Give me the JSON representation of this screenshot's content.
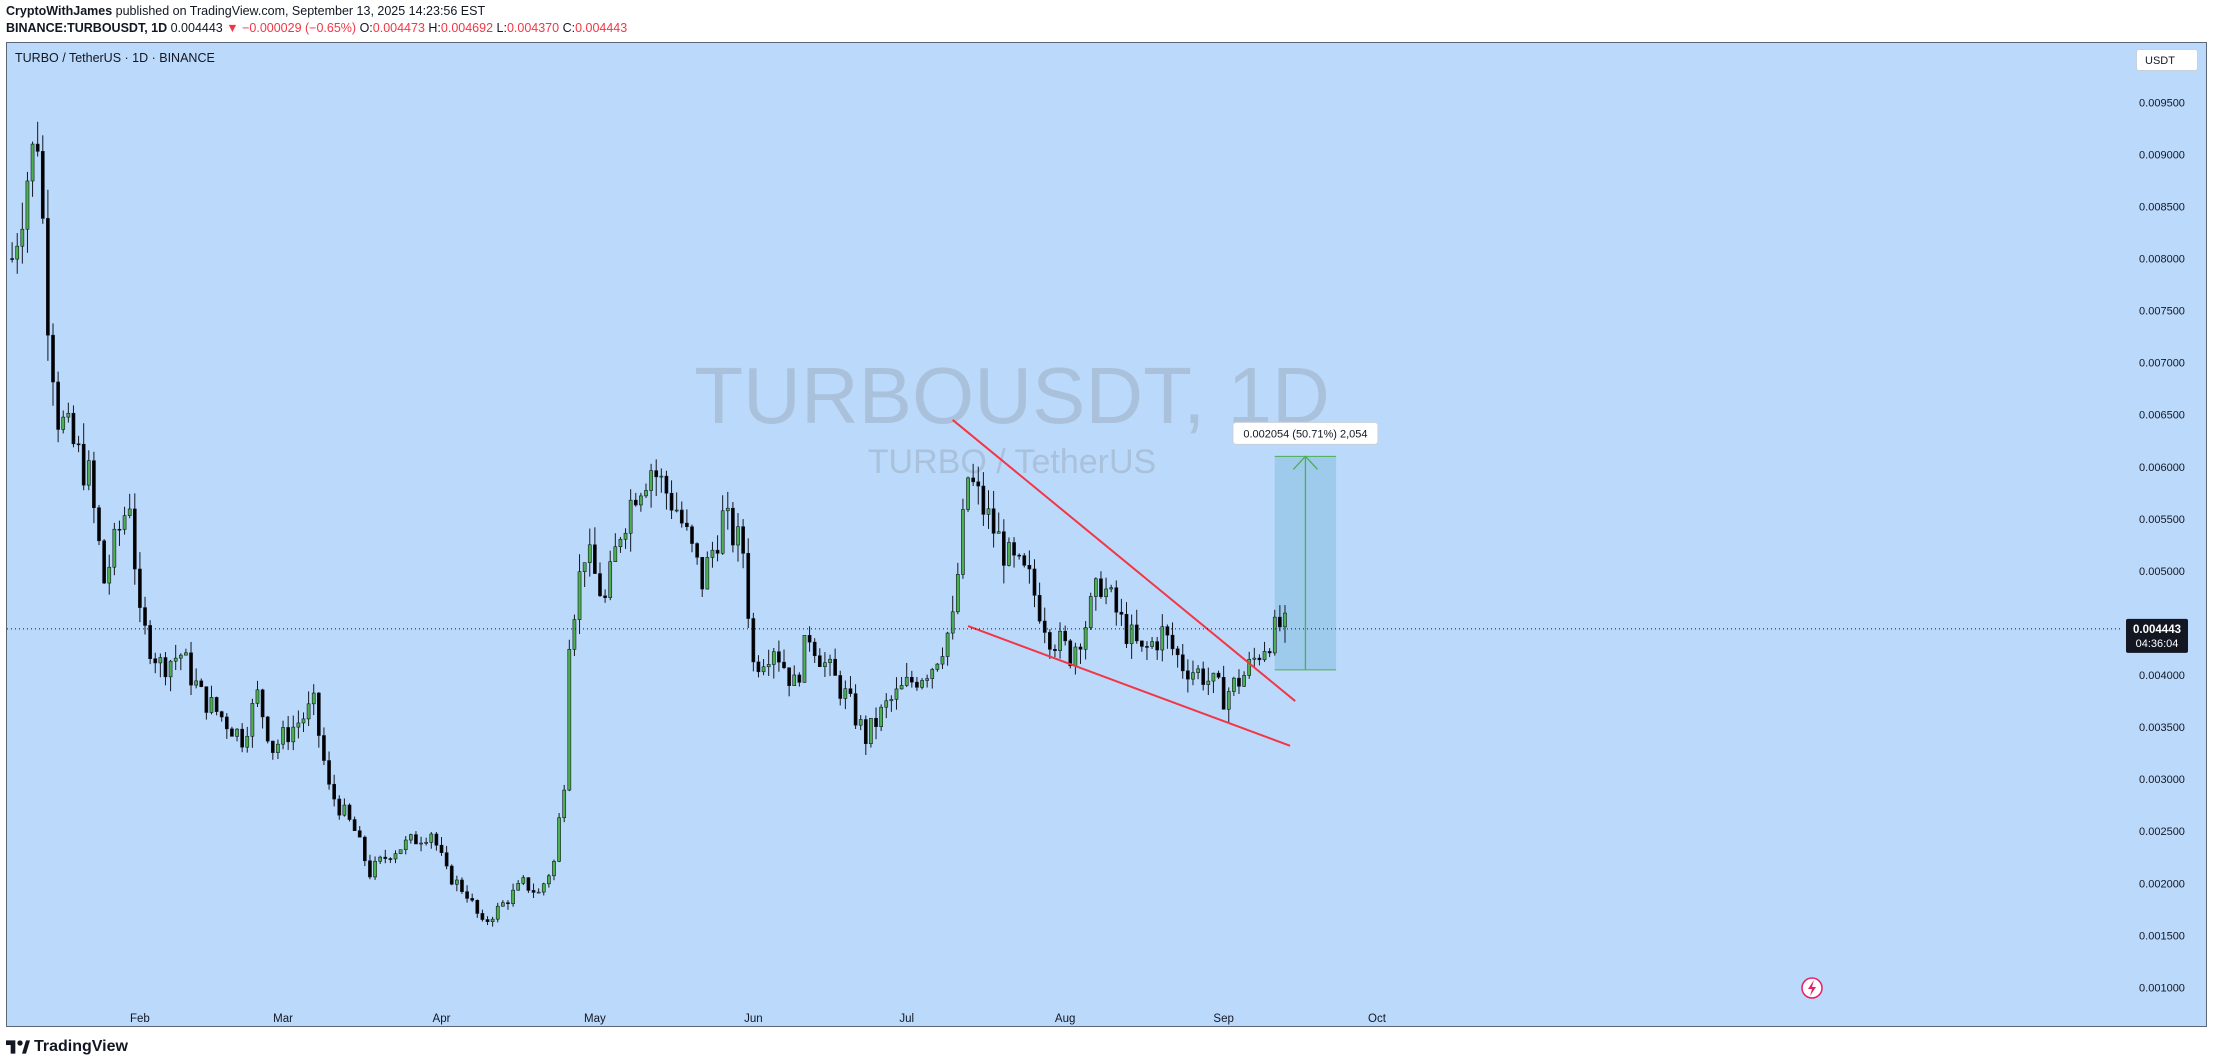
{
  "header": {
    "author": "CryptoWithJames",
    "published_text": "published on TradingView.com, September 13, 2025 14:23:56 EST",
    "symbol_line": "BINANCE:TURBOUSDT, 1D",
    "last": "0.004443",
    "change": "−0.000029 (−0.65%)",
    "o_label": "O:",
    "o": "0.004473",
    "h_label": "H:",
    "h": "0.004692",
    "l_label": "L:",
    "l": "0.004370",
    "c_label": "C:",
    "c": "0.004443"
  },
  "chart_title": "TURBO / TetherUS · 1D · BINANCE",
  "currency_button": "USDT",
  "watermark": {
    "line1": "TURBOUSDT, 1D",
    "line2": "TURBO / TetherUS"
  },
  "price_label": {
    "value": "0.004443",
    "countdown": "04:36:04"
  },
  "measure_label": "0.002054 (50.71%) 2,054",
  "brand": "TradingView",
  "colors": {
    "background": "#bbd9fb",
    "up": "#4caf50",
    "down": "#000000",
    "trendline": "#f23645",
    "target_box": "#99c8e8",
    "arrow": "#4caf50"
  },
  "chart_data": {
    "type": "candlestick",
    "title": "TURBO / TetherUS · 1D · BINANCE",
    "x_ticks": [
      "Feb",
      "Mar",
      "Apr",
      "May",
      "Jun",
      "Jul",
      "Aug",
      "Sep",
      "Oct"
    ],
    "y_ticks": [
      "0.009500",
      "0.009000",
      "0.008500",
      "0.008000",
      "0.007500",
      "0.007000",
      "0.006500",
      "0.006000",
      "0.005500",
      "0.005000",
      "0.004500",
      "0.004000",
      "0.003500",
      "0.003000",
      "0.002500",
      "0.002000",
      "0.001500",
      "0.001000"
    ],
    "y_range": [
      0.00061,
      0.01007
    ],
    "close_path": [
      [
        "2025-01-07",
        0.008
      ],
      [
        "2025-01-10",
        0.0088
      ],
      [
        "2025-01-12",
        0.0092
      ],
      [
        "2025-01-14",
        0.0075
      ],
      [
        "2025-01-16",
        0.0065
      ],
      [
        "2025-01-19",
        0.0062
      ],
      [
        "2025-01-22",
        0.0059
      ],
      [
        "2025-01-25",
        0.0049
      ],
      [
        "2025-01-28",
        0.0054
      ],
      [
        "2025-01-30",
        0.0057
      ],
      [
        "2025-02-01",
        0.0045
      ],
      [
        "2025-02-05",
        0.0041
      ],
      [
        "2025-02-09",
        0.0042
      ],
      [
        "2025-02-13",
        0.0038
      ],
      [
        "2025-02-17",
        0.0036
      ],
      [
        "2025-02-21",
        0.0034
      ],
      [
        "2025-02-24",
        0.0038
      ],
      [
        "2025-02-27",
        0.0033
      ],
      [
        "2025-03-03",
        0.0035
      ],
      [
        "2025-03-07",
        0.0037
      ],
      [
        "2025-03-10",
        0.0029
      ],
      [
        "2025-03-15",
        0.0025
      ],
      [
        "2025-03-18",
        0.0021
      ],
      [
        "2025-03-22",
        0.0023
      ],
      [
        "2025-03-26",
        0.0024
      ],
      [
        "2025-03-30",
        0.0025
      ],
      [
        "2025-04-02",
        0.0021
      ],
      [
        "2025-04-06",
        0.0019
      ],
      [
        "2025-04-09",
        0.0016
      ],
      [
        "2025-04-13",
        0.0018
      ],
      [
        "2025-04-17",
        0.002
      ],
      [
        "2025-04-20",
        0.0019
      ],
      [
        "2025-04-23",
        0.0022
      ],
      [
        "2025-04-25",
        0.003
      ],
      [
        "2025-04-26",
        0.0044
      ],
      [
        "2025-04-29",
        0.0052
      ],
      [
        "2025-05-03",
        0.0047
      ],
      [
        "2025-05-06",
        0.0054
      ],
      [
        "2025-05-09",
        0.0058
      ],
      [
        "2025-05-12",
        0.006
      ],
      [
        "2025-05-17",
        0.0056
      ],
      [
        "2025-05-22",
        0.0049
      ],
      [
        "2025-05-26",
        0.0055
      ],
      [
        "2025-05-30",
        0.0052
      ],
      [
        "2025-06-01",
        0.0041
      ],
      [
        "2025-06-05",
        0.0043
      ],
      [
        "2025-06-09",
        0.0039
      ],
      [
        "2025-06-12",
        0.0044
      ],
      [
        "2025-06-15",
        0.0041
      ],
      [
        "2025-06-19",
        0.0038
      ],
      [
        "2025-06-23",
        0.0034
      ],
      [
        "2025-06-27",
        0.0037
      ],
      [
        "2025-07-01",
        0.0039
      ],
      [
        "2025-07-06",
        0.0041
      ],
      [
        "2025-07-10",
        0.0045
      ],
      [
        "2025-07-13",
        0.0059
      ],
      [
        "2025-07-17",
        0.0055
      ],
      [
        "2025-07-21",
        0.0051
      ],
      [
        "2025-07-25",
        0.0049
      ],
      [
        "2025-07-29",
        0.0044
      ],
      [
        "2025-08-02",
        0.0042
      ],
      [
        "2025-08-05",
        0.0045
      ],
      [
        "2025-08-08",
        0.0049
      ],
      [
        "2025-08-12",
        0.0045
      ],
      [
        "2025-08-16",
        0.0042
      ],
      [
        "2025-08-20",
        0.0044
      ],
      [
        "2025-08-24",
        0.0041
      ],
      [
        "2025-08-28",
        0.004
      ],
      [
        "2025-09-01",
        0.0038
      ],
      [
        "2025-09-05",
        0.004
      ],
      [
        "2025-09-09",
        0.0043
      ],
      [
        "2025-09-12",
        0.00447
      ],
      [
        "2025-09-13",
        0.004443
      ]
    ],
    "falling_wedge": {
      "upper": [
        [
          "2025-07-10",
          0.00645
        ],
        [
          "2025-09-15",
          0.00375
        ]
      ],
      "lower": [
        [
          "2025-07-13",
          0.00447
        ],
        [
          "2025-09-14",
          0.00332
        ]
      ]
    },
    "measure": {
      "from_price": 0.00405,
      "to_price": 0.0061,
      "x_from": "2025-09-11",
      "x_to": "2025-09-23",
      "label": "0.002054 (50.71%) 2,054"
    },
    "last_price": 0.004443
  }
}
